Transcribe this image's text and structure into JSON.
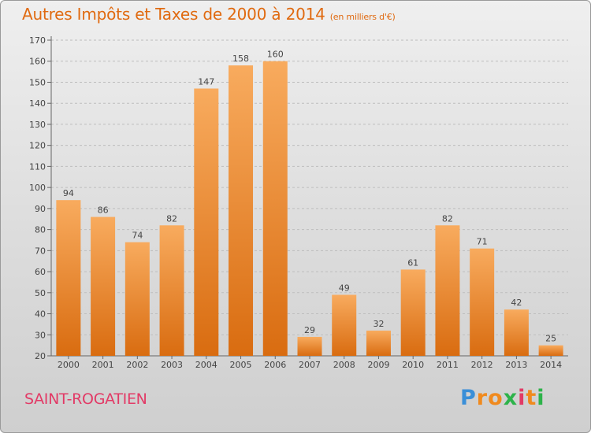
{
  "title": "Autres Impôts et Taxes de 2000 à 2014",
  "subtitle": "(en milliers d'€)",
  "commune": "SAINT-ROGATIEN",
  "logo": {
    "letters": [
      "P",
      "r",
      "o",
      "x",
      "i",
      "t",
      "i"
    ],
    "colors": [
      "#3a8fd8",
      "#f08a1e",
      "#f08a1e",
      "#2db34a",
      "#e23a66",
      "#f08a1e",
      "#2db34a"
    ]
  },
  "colors": {
    "bar_light": "#f8ab5e",
    "bar_dark": "#d96c10",
    "title": "#e06a10",
    "commune": "#e23a66"
  },
  "chart_data": {
    "type": "bar",
    "categories": [
      "2000",
      "2001",
      "2002",
      "2003",
      "2004",
      "2005",
      "2006",
      "2007",
      "2008",
      "2009",
      "2010",
      "2011",
      "2012",
      "2013",
      "2014"
    ],
    "values": [
      94,
      86,
      74,
      82,
      147,
      158,
      160,
      29,
      49,
      32,
      61,
      82,
      71,
      42,
      25
    ],
    "ylim": [
      20,
      170
    ],
    "yticks": [
      20,
      30,
      40,
      50,
      60,
      70,
      80,
      90,
      100,
      110,
      120,
      130,
      140,
      150,
      160,
      170
    ],
    "grid": true,
    "xlabel": "",
    "ylabel": ""
  }
}
